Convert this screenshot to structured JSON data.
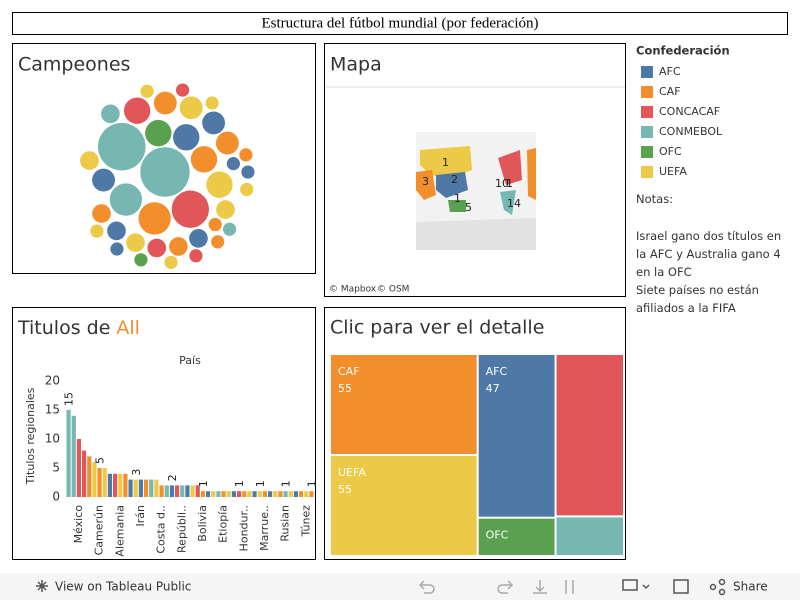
{
  "header": {
    "title": "Estructura del fútbol mundial (por federación)"
  },
  "legend": {
    "title": "Confederación",
    "items": [
      {
        "name": "AFC",
        "color": "#4e79a7"
      },
      {
        "name": "CAF",
        "color": "#f28e2b"
      },
      {
        "name": "CONCACAF",
        "color": "#e15759"
      },
      {
        "name": "CONMEBOL",
        "color": "#76b7b2"
      },
      {
        "name": "OFC",
        "color": "#59a14f"
      },
      {
        "name": "UEFA",
        "color": "#edc948"
      }
    ]
  },
  "notes": {
    "title": "Notas:",
    "paragraphs": [
      "Israel gano dos títulos en la AFC y Australia gano 4 en la OFC",
      "Siete países no están afiliados a la FIFA"
    ]
  },
  "champions": {
    "title": "Campeones",
    "bubbles": [
      {
        "confederation": 3,
        "value": 14
      },
      {
        "confederation": 3,
        "value": 13
      },
      {
        "confederation": 2,
        "value": 8
      },
      {
        "confederation": 1,
        "value": 6
      },
      {
        "confederation": 3,
        "value": 6
      },
      {
        "confederation": 4,
        "value": 4
      },
      {
        "confederation": 0,
        "value": 4
      },
      {
        "confederation": 1,
        "value": 4
      },
      {
        "confederation": 5,
        "value": 4
      },
      {
        "confederation": 2,
        "value": 4
      },
      {
        "confederation": 0,
        "value": 3
      },
      {
        "confederation": 1,
        "value": 3
      },
      {
        "confederation": 5,
        "value": 3
      },
      {
        "confederation": 0,
        "value": 3
      },
      {
        "confederation": 1,
        "value": 3
      },
      {
        "confederation": 5,
        "value": 2
      },
      {
        "confederation": 0,
        "value": 2
      },
      {
        "confederation": 1,
        "value": 2
      },
      {
        "confederation": 2,
        "value": 2
      },
      {
        "confederation": 5,
        "value": 2
      },
      {
        "confederation": 0,
        "value": 2
      },
      {
        "confederation": 1,
        "value": 2
      },
      {
        "confederation": 5,
        "value": 2
      },
      {
        "confederation": 3,
        "value": 2
      },
      {
        "confederation": 0,
        "value": 1
      },
      {
        "confederation": 1,
        "value": 1
      },
      {
        "confederation": 5,
        "value": 1
      },
      {
        "confederation": 2,
        "value": 1
      },
      {
        "confederation": 5,
        "value": 1
      },
      {
        "confederation": 1,
        "value": 1
      },
      {
        "confederation": 0,
        "value": 1
      },
      {
        "confederation": 5,
        "value": 1
      },
      {
        "confederation": 3,
        "value": 1
      },
      {
        "confederation": 1,
        "value": 1
      },
      {
        "confederation": 2,
        "value": 1
      },
      {
        "confederation": 5,
        "value": 1
      },
      {
        "confederation": 4,
        "value": 1
      },
      {
        "confederation": 0,
        "value": 1
      },
      {
        "confederation": 5,
        "value": 1
      }
    ]
  },
  "map": {
    "title": "Mapa",
    "labels": [
      "1",
      "3",
      "2",
      "1",
      "5",
      "10",
      "1",
      "14"
    ],
    "attribution": [
      "© Mapbox",
      "© OSM"
    ]
  },
  "chart_data": {
    "type": "bar",
    "title": "Titulos de",
    "title_filter": "All",
    "x_label": "País",
    "y_label": "Titulos regionales",
    "ylim": [
      0,
      20
    ],
    "yticks": [
      0,
      5,
      10,
      15,
      20
    ],
    "categories": [
      null,
      null,
      "México",
      null,
      null,
      null,
      "Camerún",
      null,
      null,
      null,
      "Alemania",
      null,
      null,
      null,
      "Irán",
      null,
      null,
      null,
      "Costa d..",
      null,
      null,
      null,
      "Repúbli..",
      null,
      null,
      null,
      "Bolivia",
      null,
      null,
      null,
      "Etiopía",
      null,
      null,
      null,
      "Hondur..",
      null,
      null,
      null,
      "Marrue..",
      null,
      null,
      null,
      "Rusian",
      null,
      null,
      null,
      "Túnez",
      null
    ],
    "values": [
      15,
      14,
      10,
      8,
      7,
      6,
      5,
      5,
      4,
      4,
      4,
      4,
      3,
      3,
      3,
      3,
      3,
      3,
      2,
      2,
      2,
      2,
      2,
      2,
      2,
      2,
      1,
      1,
      1,
      1,
      1,
      1,
      1,
      1,
      1,
      1,
      1,
      1,
      1,
      1,
      1,
      1,
      1,
      1,
      1,
      1,
      1,
      1
    ],
    "value_labels": [
      "15",
      null,
      null,
      null,
      null,
      null,
      "5",
      null,
      null,
      null,
      null,
      null,
      null,
      "3",
      null,
      null,
      null,
      null,
      null,
      null,
      "2",
      null,
      null,
      null,
      null,
      null,
      "1",
      null,
      null,
      null,
      null,
      null,
      null,
      "1",
      null,
      null,
      null,
      "1",
      null,
      null,
      null,
      null,
      "1",
      null,
      null,
      null,
      null,
      "1"
    ],
    "bar_confederations": [
      3,
      3,
      2,
      2,
      1,
      5,
      1,
      5,
      0,
      2,
      5,
      1,
      0,
      5,
      0,
      1,
      3,
      5,
      1,
      3,
      0,
      2,
      3,
      0,
      5,
      2,
      1,
      0,
      5,
      3,
      1,
      5,
      0,
      2,
      1,
      5,
      0,
      5,
      1,
      0,
      5,
      1,
      3,
      5,
      0,
      1,
      5,
      1
    ]
  },
  "treemap": {
    "title": "Clic para ver el detalle",
    "cells": [
      {
        "name": "CAF",
        "value": 55,
        "confederation": 1
      },
      {
        "name": "UEFA",
        "value": 55,
        "confederation": 5
      },
      {
        "name": "AFC",
        "value": 47,
        "confederation": 0
      },
      {
        "name": "OFC",
        "value": 11,
        "confederation": 4
      },
      {
        "name": "CONCACAF",
        "value": 41,
        "confederation": 2
      },
      {
        "name": "CONMEBOL",
        "value": 10,
        "confederation": 3
      }
    ]
  },
  "toolbar": {
    "view": "View on Tableau Public",
    "share": "Share"
  }
}
